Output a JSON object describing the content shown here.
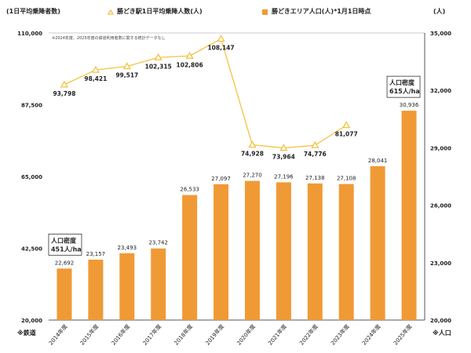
{
  "chart_data": {
    "type": "bar+line",
    "left_axis_label": "(1日平均乗降者数)",
    "right_axis_label": "(人)",
    "left_footnote": "※鉄道",
    "right_footnote": "※人口",
    "note": "※2024年度、2025年度の鉄道利用者数に関する統計データなし",
    "left_ylim": [
      20000,
      110000
    ],
    "left_ticks": [
      "20,000",
      "42,500",
      "65,000",
      "87,500",
      "110,000"
    ],
    "left_tick_values": [
      20000,
      42500,
      65000,
      87500,
      110000
    ],
    "right_ylim": [
      20000,
      35000
    ],
    "right_ticks": [
      "20,000",
      "23,000",
      "26,000",
      "29,000",
      "32,000",
      "35,000"
    ],
    "right_tick_values": [
      20000,
      23000,
      26000,
      29000,
      32000,
      35000
    ],
    "categories": [
      "2014年度",
      "2015年度",
      "2016年度",
      "2017年度",
      "2018年度",
      "2019年度",
      "2020年度",
      "2021年度",
      "2022年度",
      "2023年度",
      "2024年度",
      "2025年度"
    ],
    "series": [
      {
        "name": "勝どき駅1日平均乗降人数(人)",
        "type": "line",
        "axis": "left",
        "color": "#F5C242",
        "values": [
          93798,
          98421,
          99517,
          102315,
          102806,
          108147,
          74928,
          73964,
          74776,
          81077,
          null,
          null
        ],
        "labels": [
          "93,798",
          "98,421",
          "99,517",
          "102,315",
          "102,806",
          "108,147",
          "74,928",
          "73,964",
          "74,776",
          "81,077",
          "",
          ""
        ]
      },
      {
        "name": "勝どきエリア人口(人)*1月1日時点",
        "type": "bar",
        "axis": "right",
        "color": "#F09A36",
        "values": [
          22692,
          23157,
          23493,
          23742,
          26533,
          27097,
          27270,
          27196,
          27138,
          27108,
          28041,
          30936
        ],
        "labels": [
          "22,692",
          "23,157",
          "23,493",
          "23,742",
          "26,533",
          "27,097",
          "27,270",
          "27,196",
          "27,138",
          "27,108",
          "28,041",
          "30,936"
        ]
      }
    ],
    "annotations": [
      {
        "category": "2014年度",
        "lines": [
          "人口密度",
          "451人/ha"
        ]
      },
      {
        "category": "2025年度",
        "lines": [
          "人口密度",
          "615人/ha"
        ]
      }
    ],
    "legend": "top"
  }
}
